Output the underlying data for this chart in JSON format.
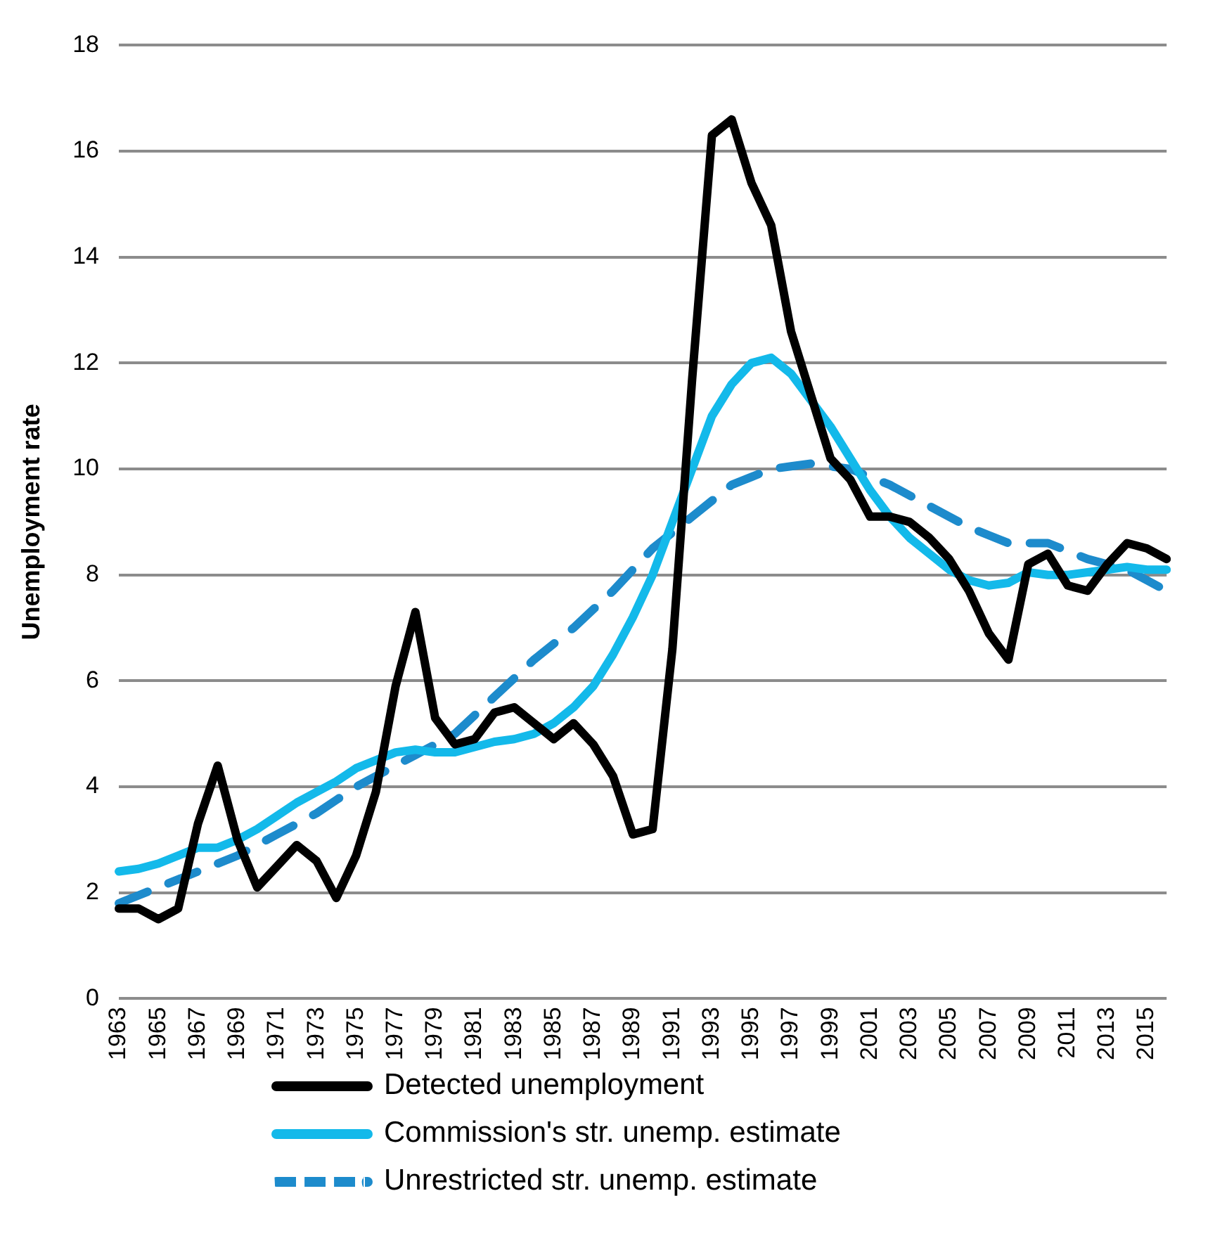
{
  "chart_data": {
    "type": "line",
    "ylabel": "Unemployment rate",
    "categories": [
      "1963",
      null,
      "1965",
      null,
      "1967",
      null,
      "1969",
      null,
      "1971",
      null,
      "1973",
      null,
      "1975",
      null,
      "1977",
      null,
      "1979",
      null,
      "1981",
      null,
      "1983",
      null,
      "1985",
      null,
      "1987",
      null,
      "1989",
      null,
      "1991",
      null,
      "1993",
      null,
      "1995",
      null,
      "1997",
      null,
      "1999",
      null,
      "2001",
      null,
      "2003",
      null,
      "2005",
      null,
      "2007",
      null,
      "2009",
      null,
      "2011",
      null,
      "2013",
      null,
      "2015",
      null
    ],
    "series": [
      {
        "name": "Detected unemployment",
        "color": "#000000",
        "line_style": "solid",
        "values": [
          1.7,
          1.7,
          1.5,
          1.7,
          3.3,
          4.4,
          3.0,
          2.1,
          2.5,
          2.9,
          2.6,
          1.9,
          2.7,
          3.9,
          5.9,
          7.3,
          5.3,
          4.8,
          4.9,
          5.4,
          5.5,
          5.2,
          4.9,
          5.2,
          4.8,
          4.2,
          3.1,
          3.2,
          6.6,
          11.7,
          16.3,
          16.6,
          15.4,
          14.6,
          12.6,
          11.4,
          10.2,
          9.8,
          9.1,
          9.1,
          9.0,
          8.7,
          8.3,
          7.7,
          6.9,
          6.4,
          8.2,
          8.4,
          7.8,
          7.7,
          8.2,
          8.6,
          8.5,
          8.3
        ]
      },
      {
        "name": "Commission's str. unemp. estimate",
        "color": "#13b9ea",
        "line_style": "solid",
        "values": [
          2.4,
          2.45,
          2.55,
          2.7,
          2.85,
          2.85,
          3.0,
          3.2,
          3.45,
          3.7,
          3.9,
          4.1,
          4.35,
          4.5,
          4.65,
          4.7,
          4.65,
          4.65,
          4.75,
          4.85,
          4.9,
          5.0,
          5.2,
          5.5,
          5.9,
          6.5,
          7.2,
          8.0,
          9.0,
          10.0,
          11.0,
          11.6,
          12.0,
          12.1,
          11.8,
          11.3,
          10.8,
          10.2,
          9.6,
          9.1,
          8.7,
          8.4,
          8.1,
          7.9,
          7.8,
          7.85,
          8.05,
          8.0,
          8.0,
          8.05,
          8.1,
          8.15,
          8.1,
          8.1
        ]
      },
      {
        "name": "Unrestricted str. unemp. estimate",
        "color": "#1d8bcc",
        "line_style": "dashed",
        "values": [
          1.8,
          1.95,
          2.1,
          2.25,
          2.4,
          2.55,
          2.7,
          2.9,
          3.1,
          3.3,
          3.5,
          3.75,
          4.0,
          4.2,
          4.4,
          4.6,
          4.8,
          5.0,
          5.35,
          5.7,
          6.05,
          6.4,
          6.7,
          7.0,
          7.35,
          7.7,
          8.1,
          8.5,
          8.8,
          9.1,
          9.4,
          9.7,
          9.85,
          10.0,
          10.05,
          10.1,
          10.05,
          10.0,
          9.85,
          9.7,
          9.5,
          9.3,
          9.1,
          8.9,
          8.75,
          8.6,
          8.6,
          8.6,
          8.45,
          8.3,
          8.2,
          8.1,
          7.9,
          7.7
        ]
      }
    ],
    "ylim": [
      0,
      18
    ],
    "yticks": [
      0,
      2,
      4,
      6,
      8,
      10,
      12,
      14,
      16,
      18
    ],
    "grid": "y",
    "legend": "bottom",
    "marker": "none"
  }
}
